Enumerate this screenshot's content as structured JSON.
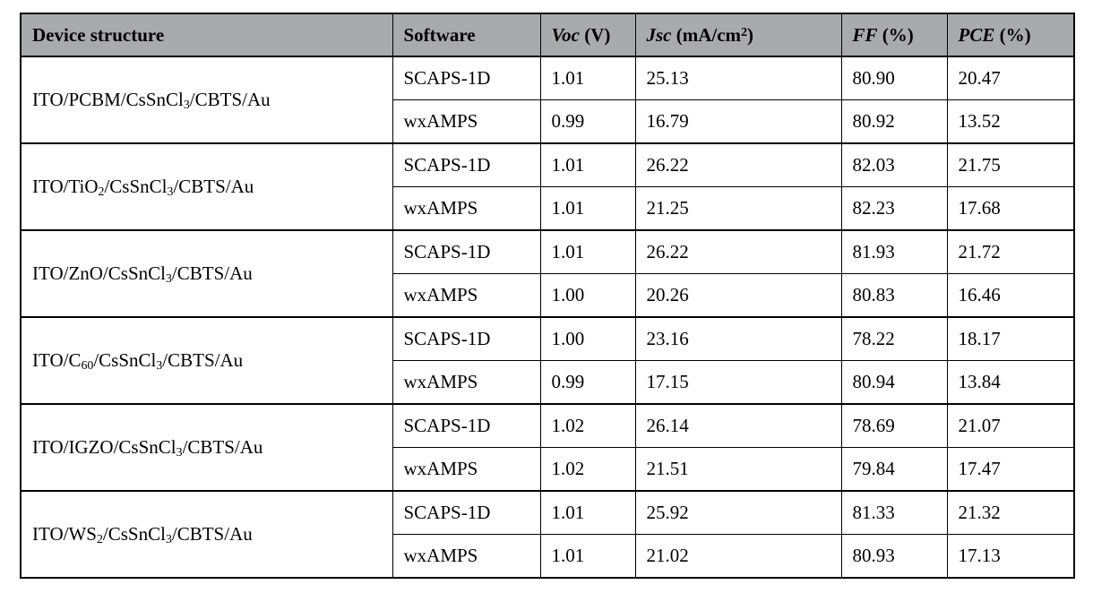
{
  "style": {
    "header_bg": "#a8aaad",
    "border_color": "#000000",
    "text_color": "#000000",
    "body_bg": "#ffffff"
  },
  "table": {
    "columns": [
      {
        "key": "device",
        "label": [
          {
            "t": "Device structure"
          }
        ]
      },
      {
        "key": "software",
        "label": [
          {
            "t": "Software"
          }
        ]
      },
      {
        "key": "voc",
        "label": [
          {
            "t": "Voc",
            "i": true
          },
          {
            "t": " (V)"
          }
        ]
      },
      {
        "key": "jsc",
        "label": [
          {
            "t": "Jsc",
            "i": true
          },
          {
            "t": " (mA/cm"
          },
          {
            "t": "2",
            "sup": true
          },
          {
            "t": ")"
          }
        ]
      },
      {
        "key": "ff",
        "label": [
          {
            "t": "FF",
            "i": true
          },
          {
            "t": " (%)"
          }
        ]
      },
      {
        "key": "pce",
        "label": [
          {
            "t": "PCE",
            "i": true
          },
          {
            "t": " (%)"
          }
        ]
      }
    ],
    "groups": [
      {
        "device": [
          {
            "t": "ITO/PCBM/CsSnCl"
          },
          {
            "t": "3",
            "sub": true
          },
          {
            "t": "/CBTS/Au"
          }
        ],
        "rows": [
          {
            "software": "SCAPS-1D",
            "voc": "1.01",
            "jsc": "25.13",
            "ff": "80.90",
            "pce": "20.47"
          },
          {
            "software": "wxAMPS",
            "voc": "0.99",
            "jsc": "16.79",
            "ff": "80.92",
            "pce": "13.52"
          }
        ]
      },
      {
        "device": [
          {
            "t": "ITO/TiO"
          },
          {
            "t": "2",
            "sub": true
          },
          {
            "t": "/CsSnCl"
          },
          {
            "t": "3",
            "sub": true
          },
          {
            "t": "/CBTS/Au"
          }
        ],
        "rows": [
          {
            "software": "SCAPS-1D",
            "voc": "1.01",
            "jsc": "26.22",
            "ff": "82.03",
            "pce": "21.75"
          },
          {
            "software": "wxAMPS",
            "voc": "1.01",
            "jsc": "21.25",
            "ff": "82.23",
            "pce": "17.68"
          }
        ]
      },
      {
        "device": [
          {
            "t": "ITO/ZnO/CsSnCl"
          },
          {
            "t": "3",
            "sub": true
          },
          {
            "t": "/CBTS/Au"
          }
        ],
        "rows": [
          {
            "software": "SCAPS-1D",
            "voc": "1.01",
            "jsc": "26.22",
            "ff": "81.93",
            "pce": "21.72"
          },
          {
            "software": "wxAMPS",
            "voc": "1.00",
            "jsc": "20.26",
            "ff": "80.83",
            "pce": "16.46"
          }
        ]
      },
      {
        "device": [
          {
            "t": "ITO/C"
          },
          {
            "t": "60",
            "sub": true
          },
          {
            "t": "/CsSnCl"
          },
          {
            "t": "3",
            "sub": true
          },
          {
            "t": "/CBTS/Au"
          }
        ],
        "rows": [
          {
            "software": "SCAPS-1D",
            "voc": "1.00",
            "jsc": "23.16",
            "ff": "78.22",
            "pce": "18.17"
          },
          {
            "software": "wxAMPS",
            "voc": "0.99",
            "jsc": "17.15",
            "ff": "80.94",
            "pce": "13.84"
          }
        ]
      },
      {
        "device": [
          {
            "t": "ITO/IGZO/CsSnCl"
          },
          {
            "t": "3",
            "sub": true
          },
          {
            "t": "/CBTS/Au"
          }
        ],
        "rows": [
          {
            "software": "SCAPS-1D",
            "voc": "1.02",
            "jsc": "26.14",
            "ff": "78.69",
            "pce": "21.07"
          },
          {
            "software": "wxAMPS",
            "voc": "1.02",
            "jsc": "21.51",
            "ff": "79.84",
            "pce": "17.47"
          }
        ]
      },
      {
        "device": [
          {
            "t": "ITO/WS"
          },
          {
            "t": "2",
            "sub": true
          },
          {
            "t": "/CsSnCl"
          },
          {
            "t": "3",
            "sub": true
          },
          {
            "t": "/CBTS/Au"
          }
        ],
        "rows": [
          {
            "software": "SCAPS-1D",
            "voc": "1.01",
            "jsc": "25.92",
            "ff": "81.33",
            "pce": "21.32"
          },
          {
            "software": "wxAMPS",
            "voc": "1.01",
            "jsc": "21.02",
            "ff": "80.93",
            "pce": "17.13"
          }
        ]
      }
    ]
  }
}
